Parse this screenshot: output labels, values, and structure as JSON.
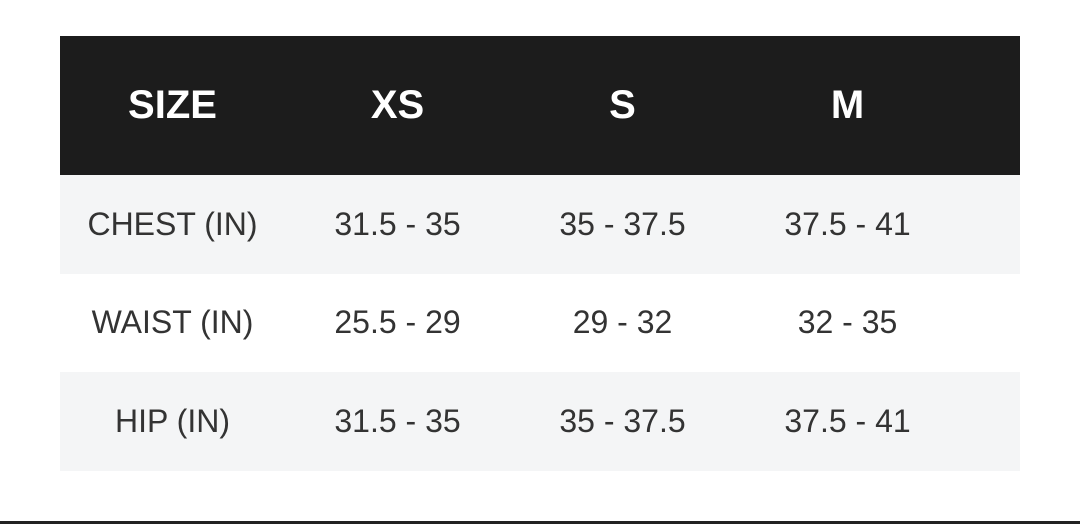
{
  "header": [
    "SIZE",
    "XS",
    "S",
    "M"
  ],
  "rows": [
    {
      "label": "CHEST (IN)",
      "values": [
        "31.5 - 35",
        "35 - 37.5",
        "37.5 - 41"
      ]
    },
    {
      "label": "WAIST (IN)",
      "values": [
        "25.5 - 29",
        "29 - 32",
        "32 - 35"
      ]
    },
    {
      "label": "HIP (IN)",
      "values": [
        "31.5 - 35",
        "35 - 37.5",
        "37.5 - 41"
      ]
    }
  ],
  "colors": {
    "header_bg": "#1c1c1c",
    "row_shade": "#f4f5f6",
    "text": "#333333"
  }
}
